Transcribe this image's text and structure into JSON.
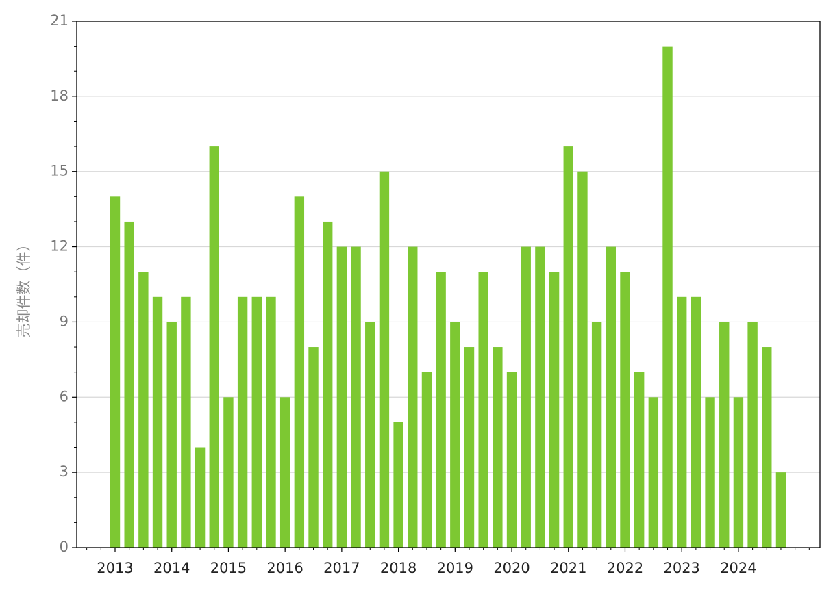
{
  "chart_data": {
    "type": "bar",
    "y_label": "売却件数（件）",
    "categories": [
      "2013",
      null,
      null,
      null,
      "2014",
      null,
      null,
      null,
      "2015",
      null,
      null,
      null,
      "2016",
      null,
      null,
      null,
      "2017",
      null,
      null,
      null,
      "2018",
      null,
      null,
      null,
      "2019",
      null,
      null,
      null,
      "2020",
      null,
      null,
      null,
      "2021",
      null,
      null,
      null,
      "2022",
      null,
      null,
      null,
      "2023",
      null,
      null,
      null,
      "2024",
      null,
      null,
      null
    ],
    "values": [
      14,
      13,
      11,
      10,
      9,
      10,
      4,
      16,
      6,
      10,
      10,
      10,
      6,
      14,
      8,
      13,
      12,
      12,
      9,
      15,
      5,
      12,
      7,
      11,
      9,
      8,
      11,
      8,
      7,
      12,
      12,
      11,
      16,
      15,
      9,
      12,
      11,
      7,
      6,
      20,
      10,
      10,
      6,
      9,
      6,
      9,
      8,
      3
    ],
    "color": "#7dc832",
    "ylim": [
      0,
      21
    ],
    "yticks": [
      0,
      3,
      6,
      9,
      12,
      15,
      18,
      21
    ],
    "grid": true
  }
}
